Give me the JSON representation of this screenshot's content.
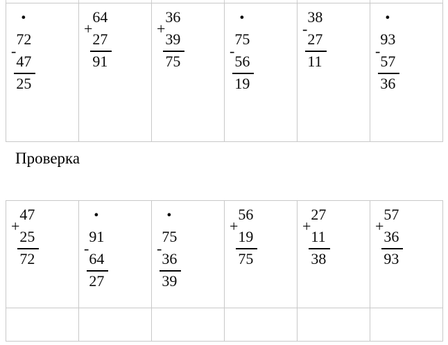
{
  "check_label": "Проверка",
  "colors": {
    "grid_border": "#c8c8c8",
    "text": "#000000",
    "rule_line": "#000000"
  },
  "problems": {
    "top": [
      {
        "bullet": "•",
        "a": "72",
        "op": "-",
        "b": "47",
        "r": "25"
      },
      {
        "bullet": "",
        "a": "64",
        "op": "+",
        "b": "27",
        "r": "91"
      },
      {
        "bullet": "",
        "a": "36",
        "op": "+",
        "b": "39",
        "r": "75"
      },
      {
        "bullet": "•",
        "a": "75",
        "op": "-",
        "b": "56",
        "r": "19"
      },
      {
        "bullet": "",
        "a": "38",
        "op": "-",
        "b": "27",
        "r": "11"
      },
      {
        "bullet": "•",
        "a": "93",
        "op": "-",
        "b": "57",
        "r": "36"
      }
    ],
    "bottom": [
      {
        "bullet": "",
        "a": "47",
        "op": "+",
        "b": "25",
        "r": "72"
      },
      {
        "bullet": "•",
        "a": "91",
        "op": "-",
        "b": "64",
        "r": "27"
      },
      {
        "bullet": "•",
        "a": "75",
        "op": "-",
        "b": "36",
        "r": "39"
      },
      {
        "bullet": "",
        "a": "56",
        "op": "+",
        "b": "19",
        "r": "75"
      },
      {
        "bullet": "",
        "a": "27",
        "op": "+",
        "b": "11",
        "r": "38"
      },
      {
        "bullet": "",
        "a": "57",
        "op": "+",
        "b": "36",
        "r": "93"
      }
    ]
  }
}
